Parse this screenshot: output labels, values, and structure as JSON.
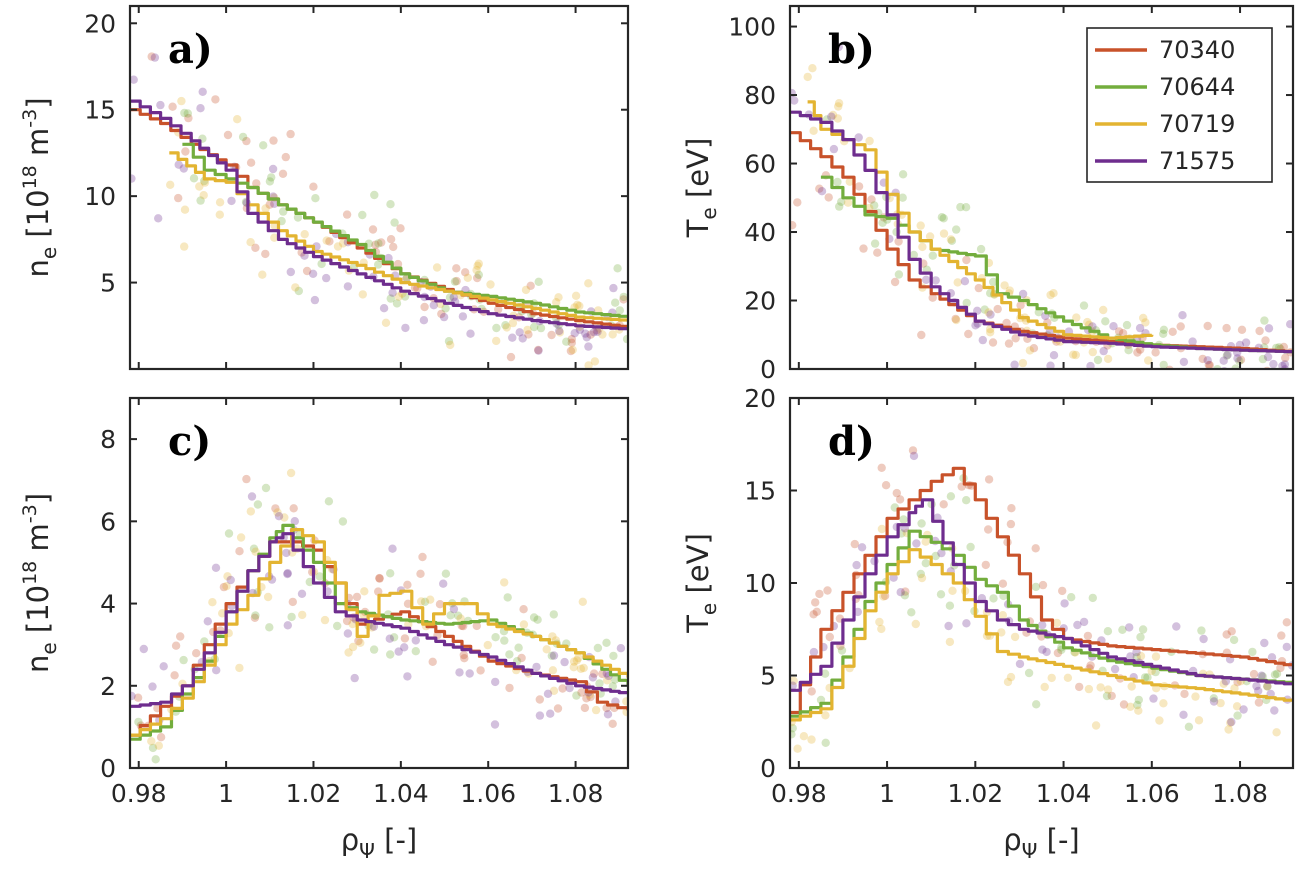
{
  "colors": {
    "70340": "#c8522a",
    "70644": "#73ad3d",
    "70719": "#e3b431",
    "71575": "#6e2d8e"
  },
  "chart_data": [
    {
      "type": "line",
      "panel_label": "a)",
      "ylabel_main": "n",
      "ylabel_sub": "e",
      "ylabel_rest": " [10",
      "ylabel_sup": "18",
      "ylabel_rest2": " m",
      "ylabel_sup2": "-3",
      "ylabel_close": "]",
      "xlim": [
        0.978,
        1.092
      ],
      "ylim": [
        0,
        21
      ],
      "xticks": [
        "0.98",
        "1",
        "1.02",
        "1.04",
        "1.06",
        "1.08"
      ],
      "yticks": [
        "5",
        "10",
        "15",
        "20"
      ],
      "series": [
        {
          "name": "70340",
          "x": [
            0.978,
            0.985,
            0.992,
            1.0,
            1.005,
            1.012,
            1.02,
            1.03,
            1.04,
            1.05,
            1.06,
            1.07,
            1.08,
            1.092
          ],
          "y": [
            15,
            14.2,
            13,
            11.8,
            10.5,
            9.5,
            8.5,
            7.0,
            5.5,
            4.6,
            3.8,
            3.2,
            2.8,
            2.4
          ]
        },
        {
          "name": "70644",
          "x": [
            0.99,
            0.995,
            1.0,
            1.005,
            1.012,
            1.02,
            1.03,
            1.04,
            1.05,
            1.06,
            1.07,
            1.08,
            1.092
          ],
          "y": [
            13,
            11.5,
            11,
            10.5,
            9.5,
            8.5,
            7.2,
            5.5,
            4.5,
            4.2,
            3.8,
            3.3,
            3.0
          ]
        },
        {
          "name": "70719",
          "x": [
            0.987,
            0.995,
            1.0,
            1.005,
            1.012,
            1.02,
            1.03,
            1.04,
            1.05,
            1.06,
            1.07,
            1.08,
            1.092
          ],
          "y": [
            12.5,
            11.0,
            10.8,
            9.5,
            8.0,
            6.8,
            6.0,
            5.0,
            4.5,
            4.0,
            3.5,
            3.0,
            2.8
          ]
        },
        {
          "name": "71575",
          "x": [
            0.978,
            0.985,
            0.992,
            1.0,
            1.005,
            1.012,
            1.02,
            1.03,
            1.04,
            1.05,
            1.06,
            1.07,
            1.08,
            1.092
          ],
          "y": [
            15.5,
            14.5,
            13.2,
            11.5,
            9.0,
            7.5,
            6.5,
            5.5,
            4.5,
            3.8,
            3.2,
            2.8,
            2.5,
            2.3
          ]
        }
      ]
    },
    {
      "type": "line",
      "panel_label": "b)",
      "ylabel_main": "T",
      "ylabel_sub": "e",
      "ylabel_rest": " [eV]",
      "xlim": [
        0.978,
        1.092
      ],
      "ylim": [
        0,
        106
      ],
      "xticks": [
        "0.98",
        "1",
        "1.02",
        "1.04",
        "1.06",
        "1.08"
      ],
      "yticks": [
        "0",
        "20",
        "40",
        "60",
        "80",
        "100"
      ],
      "legend_position": "top-right",
      "series": [
        {
          "name": "70340",
          "x": [
            0.978,
            0.985,
            0.99,
            0.995,
            1.0,
            1.005,
            1.01,
            1.02,
            1.03,
            1.04,
            1.05,
            1.06,
            1.07,
            1.08,
            1.092
          ],
          "y": [
            69,
            62,
            56,
            46,
            35,
            26,
            22,
            14,
            11,
            9,
            8,
            7,
            6.5,
            6,
            5
          ]
        },
        {
          "name": "70644",
          "x": [
            0.985,
            0.99,
            0.995,
            1.0,
            1.005,
            1.01,
            1.02,
            1.025,
            1.03,
            1.04,
            1.05,
            1.06,
            1.07,
            1.08,
            1.092
          ],
          "y": [
            56,
            50,
            45,
            44,
            40,
            35,
            33,
            22,
            20,
            14,
            9,
            7,
            6,
            5.5,
            5
          ]
        },
        {
          "name": "70719",
          "x": [
            0.982,
            0.985,
            0.99,
            0.995,
            1.0,
            1.005,
            1.01,
            1.02,
            1.03,
            1.04,
            1.05,
            1.06
          ],
          "y": [
            78,
            70,
            67,
            64,
            51,
            40,
            35,
            26,
            15,
            10,
            9,
            10
          ]
        },
        {
          "name": "71575",
          "x": [
            0.978,
            0.985,
            0.99,
            0.995,
            1.0,
            1.005,
            1.01,
            1.02,
            1.03,
            1.04,
            1.05,
            1.06,
            1.07,
            1.08,
            1.092
          ],
          "y": [
            75,
            72,
            67,
            58,
            45,
            32,
            24,
            14,
            10,
            8,
            7.5,
            6.5,
            6,
            5.5,
            5
          ]
        }
      ]
    },
    {
      "type": "line",
      "panel_label": "c)",
      "ylabel_main": "n",
      "ylabel_sub": "e",
      "ylabel_rest": " [10",
      "ylabel_sup": "18",
      "ylabel_rest2": " m",
      "ylabel_sup2": "-3",
      "ylabel_close": "]",
      "xlabel_main": "ρ",
      "xlabel_sub": "Ψ",
      "xlabel_rest": " [-]",
      "xlim": [
        0.978,
        1.092
      ],
      "ylim": [
        0,
        9
      ],
      "xticks": [
        "0.98",
        "1",
        "1.02",
        "1.04",
        "1.06",
        "1.08"
      ],
      "yticks": [
        "0",
        "2",
        "4",
        "6",
        "8"
      ],
      "series": [
        {
          "name": "70340",
          "x": [
            0.978,
            0.985,
            0.99,
            0.995,
            1.0,
            1.005,
            1.01,
            1.015,
            1.02,
            1.025,
            1.03,
            1.04,
            1.05,
            1.06,
            1.07,
            1.08,
            1.085,
            1.092
          ],
          "y": [
            0.8,
            1.5,
            2.0,
            3.0,
            4.0,
            4.8,
            5.5,
            5.5,
            5.3,
            4.5,
            3.5,
            3.8,
            3.2,
            2.6,
            2.3,
            2.1,
            1.6,
            1.4
          ]
        },
        {
          "name": "70644",
          "x": [
            0.978,
            0.985,
            0.99,
            0.995,
            1.0,
            1.005,
            1.01,
            1.013,
            1.02,
            1.025,
            1.03,
            1.04,
            1.05,
            1.06,
            1.07,
            1.08,
            1.092
          ],
          "y": [
            0.7,
            1.0,
            1.8,
            2.6,
            3.8,
            4.8,
            5.6,
            5.9,
            5.0,
            4.0,
            3.8,
            3.6,
            3.5,
            3.6,
            3.2,
            2.8,
            2.0
          ]
        },
        {
          "name": "70719",
          "x": [
            0.978,
            0.985,
            0.99,
            0.995,
            1.0,
            1.005,
            1.01,
            1.015,
            1.02,
            1.025,
            1.03,
            1.035,
            1.04,
            1.045,
            1.05,
            1.055,
            1.06,
            1.07,
            1.08,
            1.092
          ],
          "y": [
            0.8,
            1.2,
            1.7,
            2.5,
            3.5,
            4.2,
            5.0,
            5.8,
            5.5,
            4.5,
            3.2,
            4.2,
            4.3,
            3.5,
            4.0,
            4.0,
            3.5,
            3.2,
            2.8,
            2.2
          ]
        },
        {
          "name": "71575",
          "x": [
            0.978,
            0.985,
            0.99,
            0.995,
            1.0,
            1.005,
            1.01,
            1.013,
            1.02,
            1.025,
            1.03,
            1.04,
            1.05,
            1.06,
            1.07,
            1.08,
            1.092
          ],
          "y": [
            1.5,
            1.6,
            2.0,
            2.8,
            3.8,
            4.8,
            5.5,
            5.7,
            4.5,
            3.8,
            3.6,
            3.4,
            3.0,
            2.7,
            2.3,
            2.0,
            1.8
          ]
        }
      ]
    },
    {
      "type": "line",
      "panel_label": "d)",
      "ylabel_main": "T",
      "ylabel_sub": "e",
      "ylabel_rest": " [eV]",
      "xlabel_main": "ρ",
      "xlabel_sub": "Ψ",
      "xlabel_rest": " [-]",
      "xlim": [
        0.978,
        1.092
      ],
      "ylim": [
        0,
        20
      ],
      "xticks": [
        "0.98",
        "1",
        "1.02",
        "1.04",
        "1.06",
        "1.08"
      ],
      "yticks": [
        "0",
        "5",
        "10",
        "15",
        "20"
      ],
      "series": [
        {
          "name": "70340",
          "x": [
            0.978,
            0.985,
            0.99,
            0.995,
            1.0,
            1.005,
            1.01,
            1.015,
            1.02,
            1.025,
            1.03,
            1.035,
            1.04,
            1.05,
            1.06,
            1.07,
            1.08,
            1.092
          ],
          "y": [
            3.0,
            7.5,
            9.5,
            11.5,
            13.5,
            14.5,
            15.5,
            16.2,
            14.5,
            12.5,
            10.5,
            8.0,
            7.0,
            6.6,
            6.4,
            6.2,
            6.0,
            5.5
          ]
        },
        {
          "name": "70644",
          "x": [
            0.978,
            0.985,
            0.99,
            0.995,
            1.0,
            1.005,
            1.01,
            1.015,
            1.02,
            1.025,
            1.03,
            1.04,
            1.05,
            1.06,
            1.07,
            1.08,
            1.092
          ],
          "y": [
            2.8,
            3.5,
            6.0,
            9.0,
            11.0,
            12.8,
            12.2,
            11.5,
            10.2,
            9.5,
            8.0,
            6.5,
            5.8,
            5.4,
            5.0,
            4.8,
            4.6
          ]
        },
        {
          "name": "70719",
          "x": [
            0.978,
            0.985,
            0.99,
            0.995,
            1.0,
            1.005,
            1.01,
            1.015,
            1.02,
            1.025,
            1.03,
            1.04,
            1.05,
            1.06,
            1.07,
            1.08,
            1.092
          ],
          "y": [
            2.6,
            3.2,
            5.5,
            8.5,
            10.5,
            11.8,
            11.0,
            10.0,
            8.2,
            6.3,
            6.0,
            5.5,
            5.0,
            4.5,
            4.3,
            4.0,
            3.6
          ]
        },
        {
          "name": "71575",
          "x": [
            0.978,
            0.985,
            0.99,
            0.995,
            1.0,
            1.005,
            1.008,
            1.015,
            1.02,
            1.025,
            1.03,
            1.04,
            1.05,
            1.06,
            1.07,
            1.08,
            1.092
          ],
          "y": [
            4.2,
            5.5,
            8.0,
            10.5,
            12.5,
            13.8,
            14.5,
            11.0,
            9.0,
            8.0,
            7.5,
            7.0,
            6.0,
            5.5,
            5.0,
            4.8,
            4.5
          ]
        }
      ]
    }
  ]
}
